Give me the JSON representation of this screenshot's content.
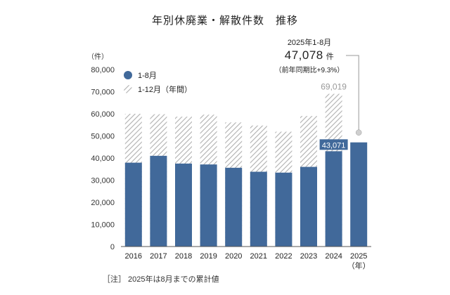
{
  "title": "年別休廃業・解散件数　推移",
  "y_unit": "（件）",
  "x_unit": "（年）",
  "note": "［注］ 2025年は8月までの累計値",
  "callout": {
    "period": "2025年1-8月",
    "value": "47,078",
    "unit": "件",
    "yoy": "（前年同期比+9.3%）"
  },
  "colors": {
    "bar_1_8": "#41699a",
    "bar_full_stripe": "#b0b0b0",
    "axis": "#555555",
    "leader": "#999999"
  },
  "chart_data": {
    "type": "bar",
    "categories": [
      "2016",
      "2017",
      "2018",
      "2019",
      "2020",
      "2021",
      "2022",
      "2023",
      "2024",
      "2025"
    ],
    "series": [
      {
        "name": "1-12月（年間）",
        "values": [
          60000,
          59800,
          58700,
          59600,
          56100,
          54700,
          51900,
          59000,
          69019,
          null
        ]
      },
      {
        "name": "1-8月",
        "values": [
          37900,
          41000,
          37500,
          37100,
          35600,
          33800,
          33400,
          36000,
          43071,
          47078
        ]
      }
    ],
    "data_labels": {
      "full_2024": "69,019",
      "partial_2024": "43,071"
    },
    "ylim": [
      0,
      80000
    ],
    "yticks": [
      "0",
      "10,000",
      "20,000",
      "30,000",
      "40,000",
      "50,000",
      "60,000",
      "70,000",
      "80,000"
    ],
    "ytick_values": [
      0,
      10000,
      20000,
      30000,
      40000,
      50000,
      60000,
      70000,
      80000
    ],
    "legend": [
      "1-8月",
      "1-12月（年間）"
    ],
    "grid": false
  }
}
